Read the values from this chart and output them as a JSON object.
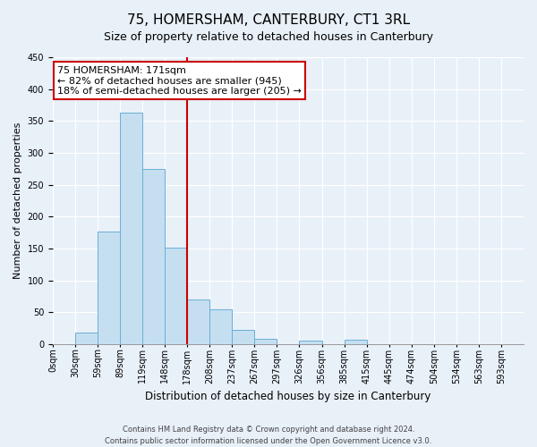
{
  "title": "75, HOMERSHAM, CANTERBURY, CT1 3RL",
  "subtitle": "Size of property relative to detached houses in Canterbury",
  "xlabel": "Distribution of detached houses by size in Canterbury",
  "ylabel": "Number of detached properties",
  "bin_labels": [
    "0sqm",
    "30sqm",
    "59sqm",
    "89sqm",
    "119sqm",
    "148sqm",
    "178sqm",
    "208sqm",
    "237sqm",
    "267sqm",
    "297sqm",
    "326sqm",
    "356sqm",
    "385sqm",
    "415sqm",
    "445sqm",
    "474sqm",
    "504sqm",
    "534sqm",
    "563sqm",
    "593sqm"
  ],
  "bar_heights": [
    0,
    18,
    177,
    363,
    275,
    151,
    70,
    55,
    23,
    9,
    0,
    6,
    0,
    7,
    0,
    0,
    0,
    0,
    0,
    0,
    0
  ],
  "bar_color": "#c5dff0",
  "bar_edge_color": "#6baed6",
  "vline_x": 6,
  "vline_color": "#cc0000",
  "annotation_line1": "75 HOMERSHAM: 171sqm",
  "annotation_line2": "← 82% of detached houses are smaller (945)",
  "annotation_line3": "18% of semi-detached houses are larger (205) →",
  "annotation_box_color": "#ffffff",
  "annotation_box_edge": "#cc0000",
  "ylim": [
    0,
    450
  ],
  "yticks": [
    0,
    50,
    100,
    150,
    200,
    250,
    300,
    350,
    400,
    450
  ],
  "footer_line1": "Contains HM Land Registry data © Crown copyright and database right 2024.",
  "footer_line2": "Contains public sector information licensed under the Open Government Licence v3.0.",
  "bg_color": "#e8f0f8",
  "grid_color": "#ffffff",
  "title_fontsize": 11,
  "subtitle_fontsize": 9,
  "ylabel_fontsize": 8,
  "xlabel_fontsize": 8.5,
  "tick_fontsize": 7,
  "annot_fontsize": 8,
  "footer_fontsize": 6
}
